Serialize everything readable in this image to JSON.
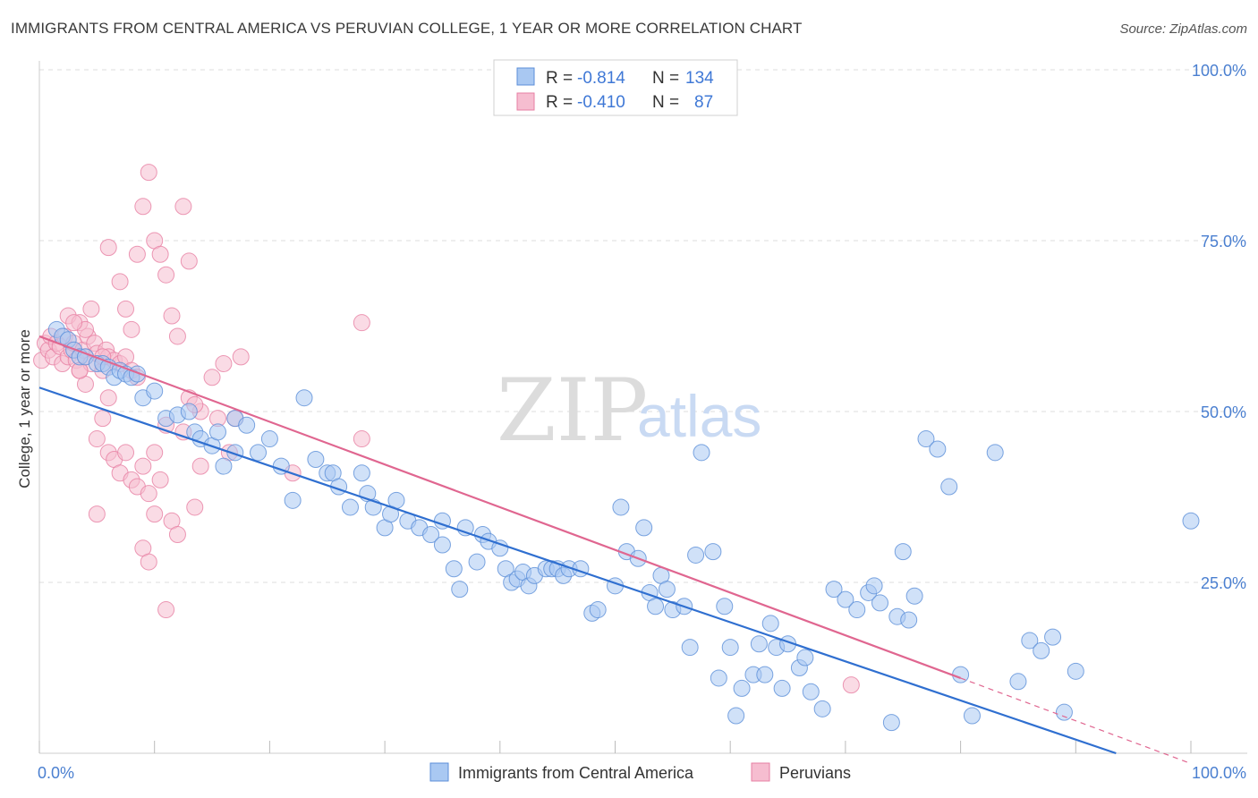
{
  "header": {
    "title": "IMMIGRANTS FROM CENTRAL AMERICA VS PERUVIAN COLLEGE, 1 YEAR OR MORE CORRELATION CHART",
    "source": "Source: ZipAtlas.com"
  },
  "watermark": {
    "zip": "ZIP",
    "atlas": "atlas"
  },
  "colors": {
    "blue_fill": "#a9c8f2",
    "blue_stroke": "#5b8ed8",
    "blue_line": "#2f6fd0",
    "pink_fill": "#f6bdd0",
    "pink_stroke": "#e77fa3",
    "pink_line": "#e06690",
    "grid": "#dddddd",
    "tick_text": "#4a7fd0"
  },
  "legend": {
    "rows": [
      {
        "r_label": "R =",
        "r_value": "-0.814",
        "n_label": "N =",
        "n_value": "134"
      },
      {
        "r_label": "R =",
        "r_value": "-0.410",
        "n_label": "N =",
        "n_value": "87"
      }
    ]
  },
  "bottom_legend": [
    {
      "label": "Immigrants from Central America"
    },
    {
      "label": "Peruvians"
    }
  ],
  "chart_data": {
    "type": "scatter",
    "xlabel": "",
    "ylabel": "College, 1 year or more",
    "xlim": [
      0,
      100
    ],
    "ylim": [
      0,
      100
    ],
    "x_tick_labels": [
      "0.0%",
      "100.0%"
    ],
    "y_tick_labels": [
      "100.0%",
      "75.0%",
      "50.0%",
      "25.0%"
    ],
    "y_tick_values": [
      100,
      75,
      50,
      25
    ],
    "grid": true,
    "legend_position": "top-center",
    "series": [
      {
        "name": "Immigrants from Central America",
        "r": -0.814,
        "n": 134,
        "trend": {
          "x0": 0,
          "y0": 53.5,
          "x1": 93.5,
          "y1": 0
        },
        "points": [
          [
            1.5,
            62
          ],
          [
            2,
            61
          ],
          [
            2.5,
            60.5
          ],
          [
            3,
            59
          ],
          [
            3.5,
            58
          ],
          [
            4,
            58
          ],
          [
            5,
            57
          ],
          [
            5.5,
            57
          ],
          [
            6,
            56.5
          ],
          [
            6.5,
            55
          ],
          [
            7,
            56
          ],
          [
            7.5,
            55.5
          ],
          [
            8,
            55
          ],
          [
            8.5,
            55.5
          ],
          [
            9,
            52
          ],
          [
            10,
            53
          ],
          [
            11,
            49
          ],
          [
            12,
            49.5
          ],
          [
            13,
            50
          ],
          [
            13.5,
            47
          ],
          [
            14,
            46
          ],
          [
            15,
            45
          ],
          [
            15.5,
            47
          ],
          [
            16,
            42
          ],
          [
            17,
            44
          ],
          [
            17,
            49
          ],
          [
            18,
            48
          ],
          [
            19,
            44
          ],
          [
            20,
            46
          ],
          [
            21,
            42
          ],
          [
            22,
            37
          ],
          [
            23,
            52
          ],
          [
            24,
            43
          ],
          [
            25,
            41
          ],
          [
            25.5,
            41
          ],
          [
            26,
            39
          ],
          [
            27,
            36
          ],
          [
            28,
            41
          ],
          [
            28.5,
            38
          ],
          [
            29,
            36
          ],
          [
            30,
            33
          ],
          [
            30.5,
            35
          ],
          [
            31,
            37
          ],
          [
            32,
            34
          ],
          [
            33,
            33
          ],
          [
            34,
            32
          ],
          [
            35,
            34
          ],
          [
            35,
            30.5
          ],
          [
            36,
            27
          ],
          [
            36.5,
            24
          ],
          [
            37,
            33
          ],
          [
            38,
            28
          ],
          [
            38.5,
            32
          ],
          [
            39,
            31
          ],
          [
            40,
            30
          ],
          [
            40.5,
            27
          ],
          [
            41,
            25
          ],
          [
            41.5,
            25.5
          ],
          [
            42,
            26.5
          ],
          [
            42.5,
            24.5
          ],
          [
            43,
            26
          ],
          [
            44,
            27
          ],
          [
            44.5,
            27
          ],
          [
            45,
            27
          ],
          [
            45.5,
            26
          ],
          [
            46,
            27
          ],
          [
            47,
            27
          ],
          [
            48,
            20.5
          ],
          [
            48.5,
            21
          ],
          [
            50,
            24.5
          ],
          [
            50.5,
            36
          ],
          [
            51,
            29.5
          ],
          [
            52,
            28.5
          ],
          [
            52.5,
            33
          ],
          [
            53,
            23.5
          ],
          [
            53.5,
            21.5
          ],
          [
            54,
            26
          ],
          [
            54.5,
            24
          ],
          [
            55,
            21
          ],
          [
            56,
            21.5
          ],
          [
            56.5,
            15.5
          ],
          [
            57,
            29
          ],
          [
            57.5,
            44
          ],
          [
            58.5,
            29.5
          ],
          [
            59,
            11
          ],
          [
            59.5,
            21.5
          ],
          [
            60,
            15.5
          ],
          [
            60.5,
            5.5
          ],
          [
            61,
            9.5
          ],
          [
            62,
            11.5
          ],
          [
            62.5,
            16
          ],
          [
            63,
            11.5
          ],
          [
            63.5,
            19
          ],
          [
            64,
            15.5
          ],
          [
            64.5,
            9.5
          ],
          [
            65,
            16
          ],
          [
            66,
            12.5
          ],
          [
            66.5,
            14
          ],
          [
            67,
            9
          ],
          [
            68,
            6.5
          ],
          [
            69,
            24
          ],
          [
            70,
            22.5
          ],
          [
            71,
            21
          ],
          [
            72,
            23.5
          ],
          [
            72.5,
            24.5
          ],
          [
            73,
            22
          ],
          [
            74,
            4.5
          ],
          [
            74.5,
            20
          ],
          [
            75,
            29.5
          ],
          [
            75.5,
            19.5
          ],
          [
            76,
            23
          ],
          [
            77,
            46
          ],
          [
            78,
            44.5
          ],
          [
            79,
            39
          ],
          [
            80,
            11.5
          ],
          [
            81,
            5.5
          ],
          [
            83,
            44
          ],
          [
            85,
            10.5
          ],
          [
            86,
            16.5
          ],
          [
            87,
            15
          ],
          [
            88,
            17
          ],
          [
            89,
            6
          ],
          [
            90,
            12
          ],
          [
            100,
            34
          ]
        ]
      },
      {
        "name": "Peruvians",
        "r": -0.41,
        "n": 87,
        "trend": {
          "x0": 0,
          "y0": 61,
          "x1": 80,
          "y1": 11
        },
        "trend_dashed": {
          "x0": 80,
          "y0": 11,
          "x1": 100,
          "y1": -1.5
        },
        "points": [
          [
            0.2,
            57.5
          ],
          [
            0.5,
            60
          ],
          [
            0.8,
            59
          ],
          [
            1,
            61
          ],
          [
            1.2,
            58
          ],
          [
            1.5,
            60
          ],
          [
            1.8,
            59.5
          ],
          [
            2,
            57
          ],
          [
            2.2,
            61
          ],
          [
            2.5,
            58
          ],
          [
            2.8,
            59
          ],
          [
            3,
            60
          ],
          [
            3.2,
            57.5
          ],
          [
            3.5,
            56
          ],
          [
            3.8,
            59
          ],
          [
            4,
            58
          ],
          [
            4.2,
            61
          ],
          [
            4.5,
            57
          ],
          [
            4.8,
            60
          ],
          [
            5,
            58.5
          ],
          [
            2.5,
            64
          ],
          [
            3.5,
            63
          ],
          [
            4,
            62
          ],
          [
            5.5,
            56
          ],
          [
            5.8,
            59
          ],
          [
            6,
            58
          ],
          [
            6.5,
            57.5
          ],
          [
            7,
            57
          ],
          [
            7.5,
            58
          ],
          [
            8,
            56
          ],
          [
            8.5,
            55
          ],
          [
            6,
            52
          ],
          [
            5,
            46
          ],
          [
            5.5,
            49
          ],
          [
            6,
            44
          ],
          [
            6.5,
            43
          ],
          [
            7,
            41
          ],
          [
            7.5,
            44
          ],
          [
            8,
            40
          ],
          [
            8.5,
            39
          ],
          [
            9,
            42
          ],
          [
            9.5,
            38
          ],
          [
            10,
            44
          ],
          [
            10.5,
            40
          ],
          [
            11,
            48
          ],
          [
            11.5,
            34
          ],
          [
            12,
            32
          ],
          [
            12.5,
            47
          ],
          [
            13,
            52
          ],
          [
            13.5,
            36
          ],
          [
            14,
            50
          ],
          [
            15,
            55
          ],
          [
            15.5,
            49
          ],
          [
            16,
            57
          ],
          [
            16.5,
            44
          ],
          [
            17,
            49
          ],
          [
            17.5,
            58
          ],
          [
            5,
            35
          ],
          [
            6,
            74
          ],
          [
            7,
            69
          ],
          [
            7.5,
            65
          ],
          [
            8,
            62
          ],
          [
            8.5,
            73
          ],
          [
            9,
            80
          ],
          [
            9.5,
            85
          ],
          [
            10,
            75
          ],
          [
            10.5,
            73
          ],
          [
            11,
            70
          ],
          [
            11.5,
            64
          ],
          [
            12,
            61
          ],
          [
            12.5,
            80
          ],
          [
            13,
            72
          ],
          [
            13.5,
            51
          ],
          [
            14,
            42
          ],
          [
            9,
            30
          ],
          [
            9.5,
            28
          ],
          [
            10,
            35
          ],
          [
            11,
            21
          ],
          [
            4,
            54
          ],
          [
            3.5,
            56
          ],
          [
            28,
            63
          ],
          [
            22,
            41
          ],
          [
            28,
            46
          ],
          [
            70.5,
            10
          ],
          [
            3,
            63
          ],
          [
            4.5,
            65
          ],
          [
            5.5,
            58
          ]
        ]
      }
    ]
  }
}
